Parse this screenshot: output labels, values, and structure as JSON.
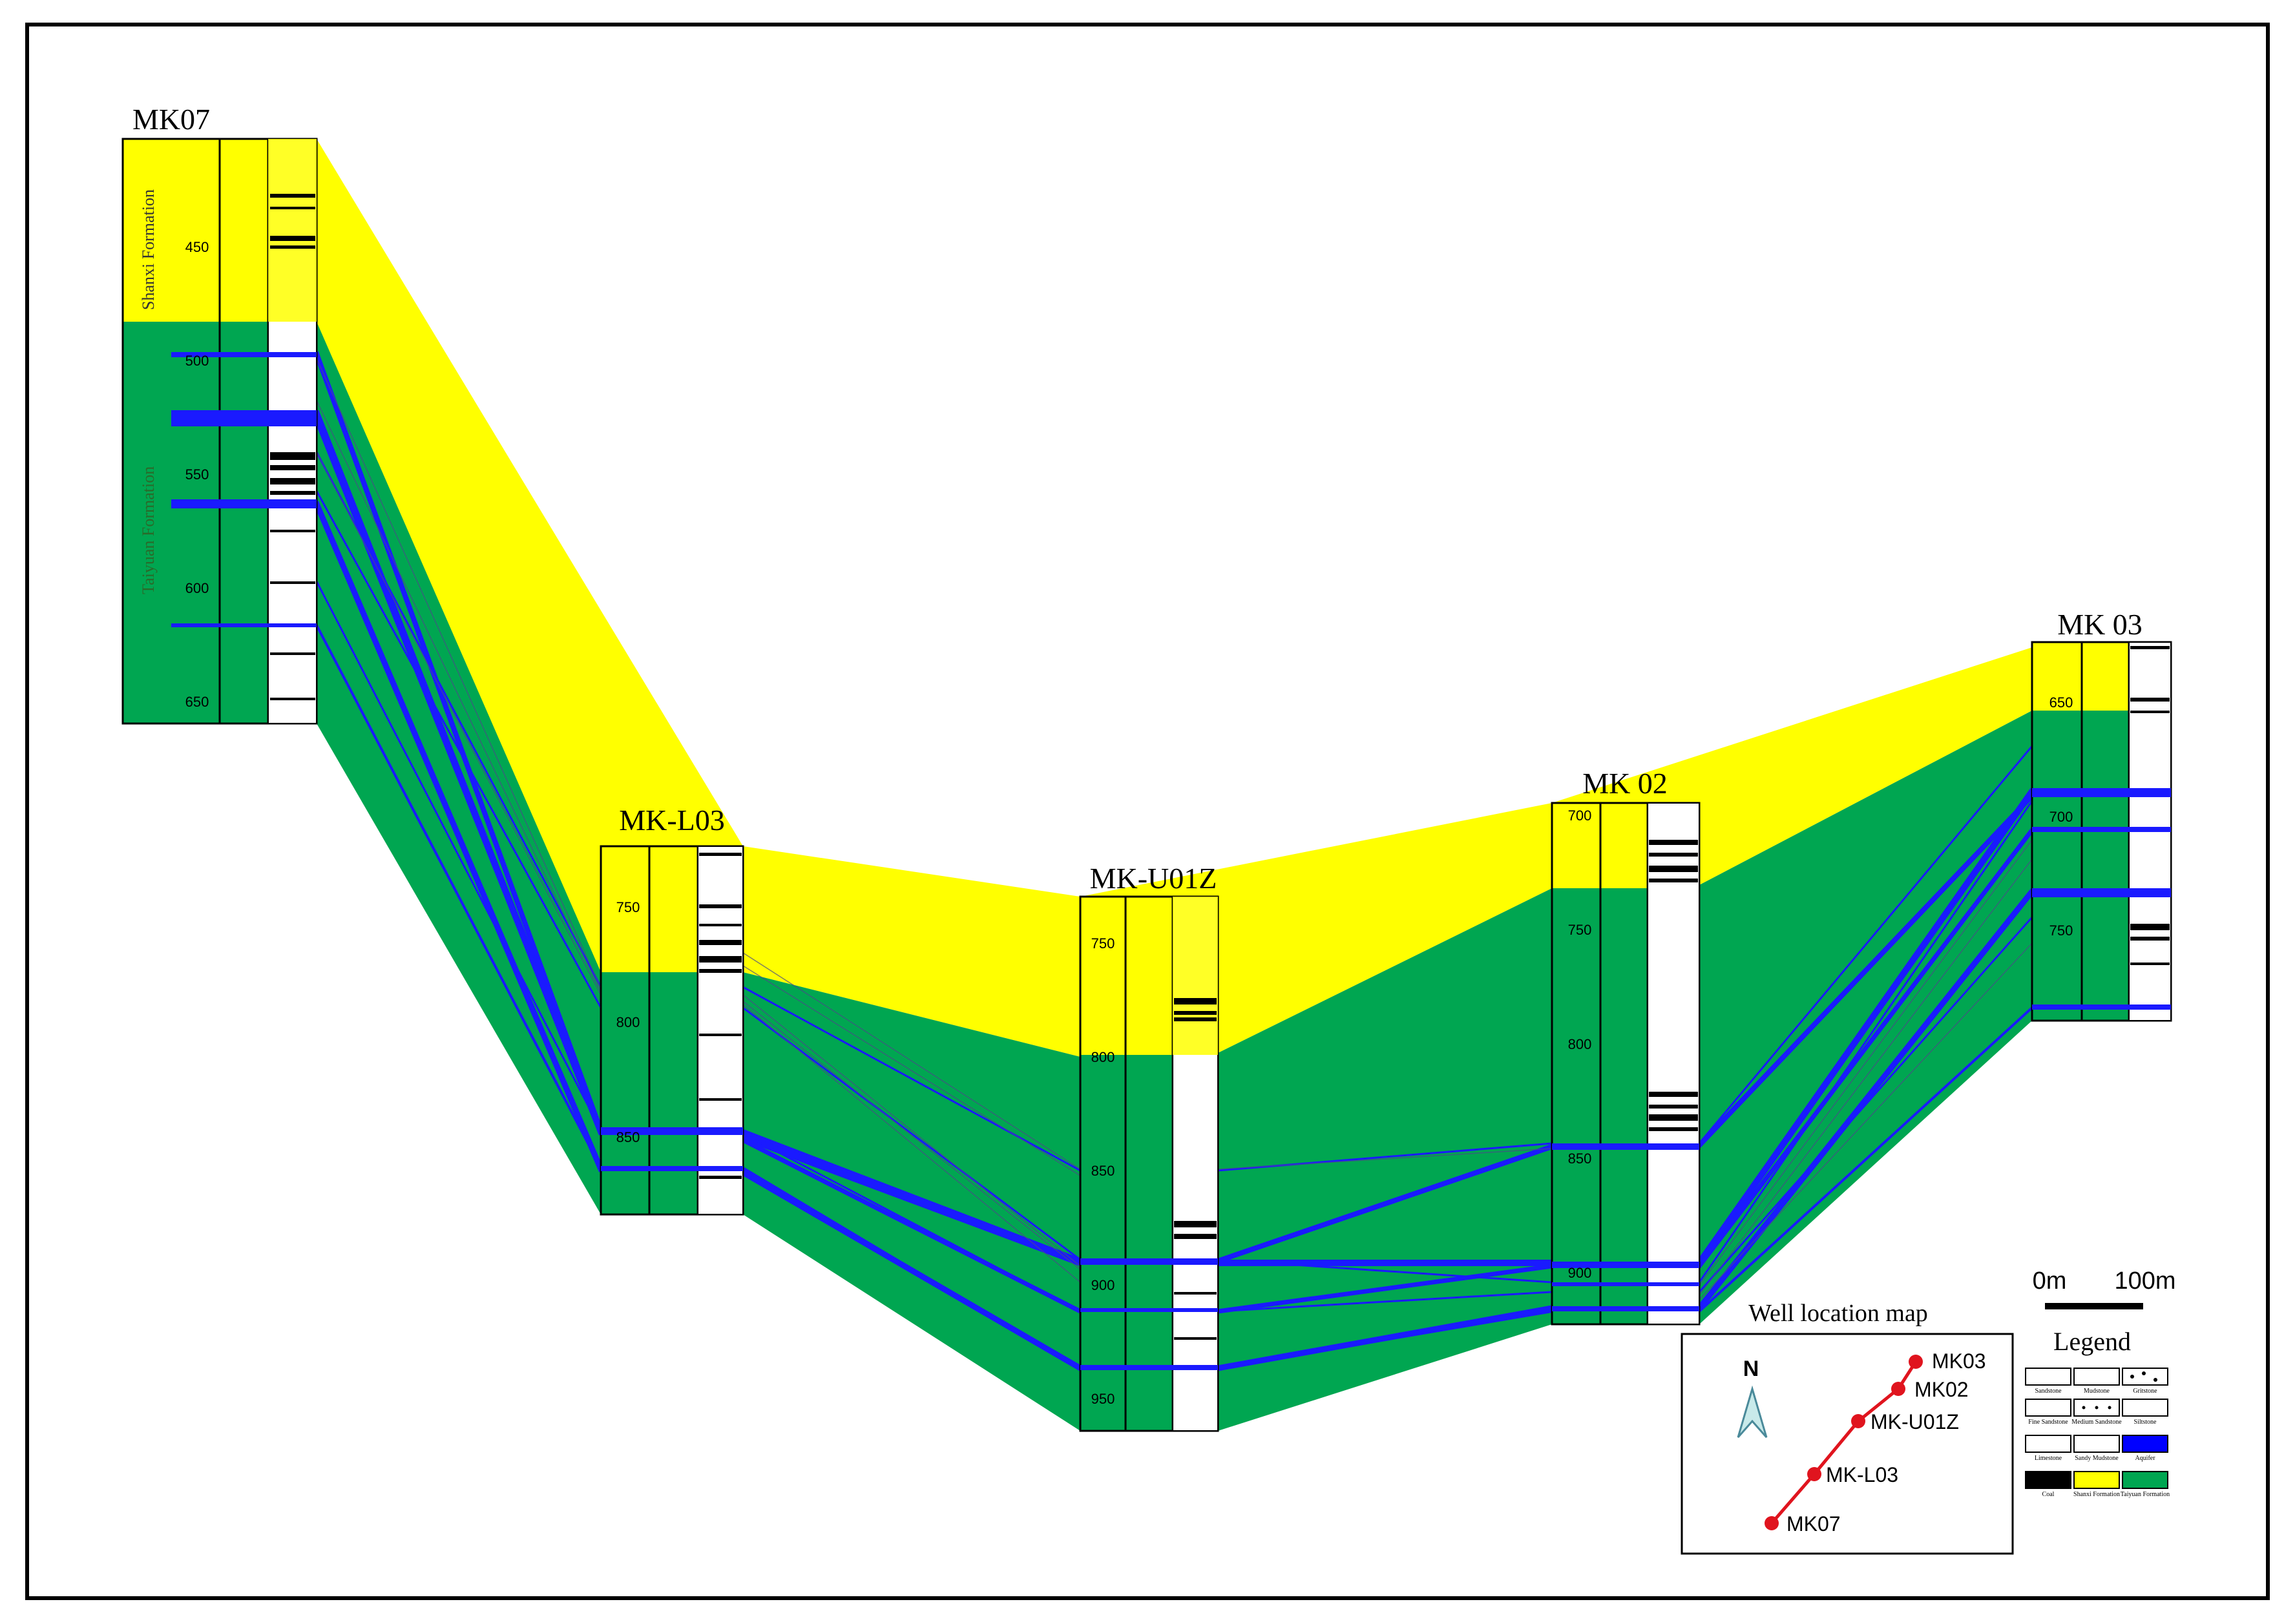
{
  "wells": [
    {
      "name": "MK07",
      "depth_labels": [
        "450",
        "500",
        "550",
        "600",
        "650"
      ]
    },
    {
      "name": "MK-L03",
      "depth_labels": [
        "750",
        "800",
        "850"
      ]
    },
    {
      "name": "MK-U01Z",
      "depth_labels": [
        "750",
        "800",
        "850",
        "900",
        "950"
      ]
    },
    {
      "name": "MK 02",
      "depth_labels": [
        "700",
        "750",
        "800",
        "850",
        "900"
      ]
    },
    {
      "name": "MK 03",
      "depth_labels": [
        "650",
        "700",
        "750"
      ]
    }
  ],
  "formations": {
    "shanxi": "Shanxi Formation",
    "taiyuan": "Taiyuan Formation"
  },
  "scale_bar": {
    "start": "0m",
    "end": "100m"
  },
  "location_map": {
    "title": "Well location map",
    "north": "N",
    "wells": [
      "MK03",
      "MK02",
      "MK-U01Z",
      "MK-L03",
      "MK07"
    ]
  },
  "legend": {
    "title": "Legend",
    "items": [
      {
        "label": "Sandstone"
      },
      {
        "label": "Mudstone"
      },
      {
        "label": "Gritstone"
      },
      {
        "label": "Fine Sandstone"
      },
      {
        "label": "Medium Sandstone"
      },
      {
        "label": "Siltstone"
      },
      {
        "label": "Limestone"
      },
      {
        "label": "Sandy Mudstone"
      },
      {
        "label": "Aquifer"
      },
      {
        "label": "Coal"
      },
      {
        "label": "Shanxi Formation"
      },
      {
        "label": "Taiyuan Formation"
      }
    ]
  },
  "colors": {
    "shanxi": "#ffff00",
    "taiyuan": "#00a651",
    "aquifer": "#0000ff",
    "well_marker": "#e0141e"
  }
}
